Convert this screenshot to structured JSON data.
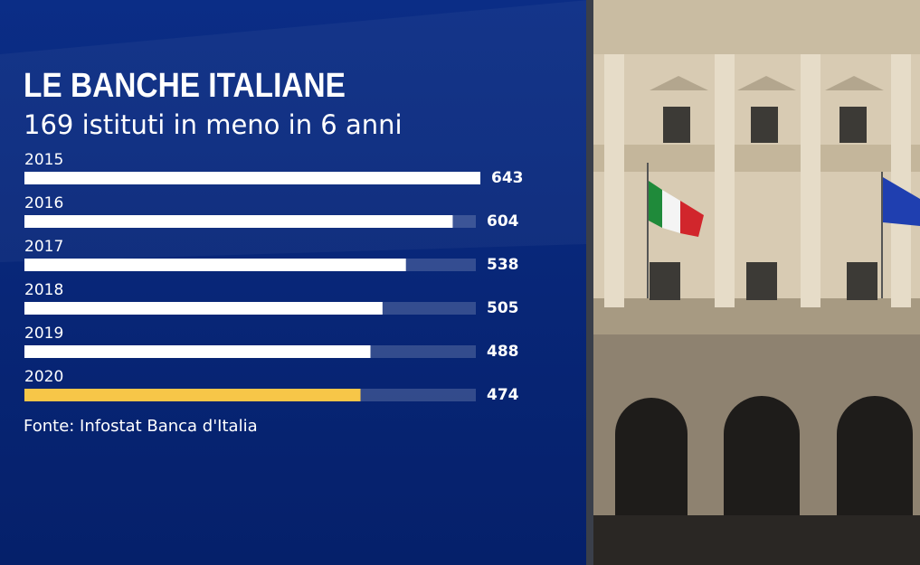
{
  "chart_data": {
    "type": "bar",
    "orientation": "horizontal",
    "title": "LE BANCHE ITALIANE",
    "subtitle": "169 istituti in meno in 6 anni",
    "categories": [
      "2015",
      "2016",
      "2017",
      "2018",
      "2019",
      "2020"
    ],
    "values": [
      643,
      604,
      538,
      505,
      488,
      474
    ],
    "colors": [
      "#ffffff",
      "#ffffff",
      "#ffffff",
      "#ffffff",
      "#ffffff",
      "#f7c648"
    ],
    "source": "Fonte: Infostat Banca d'Italia"
  }
}
